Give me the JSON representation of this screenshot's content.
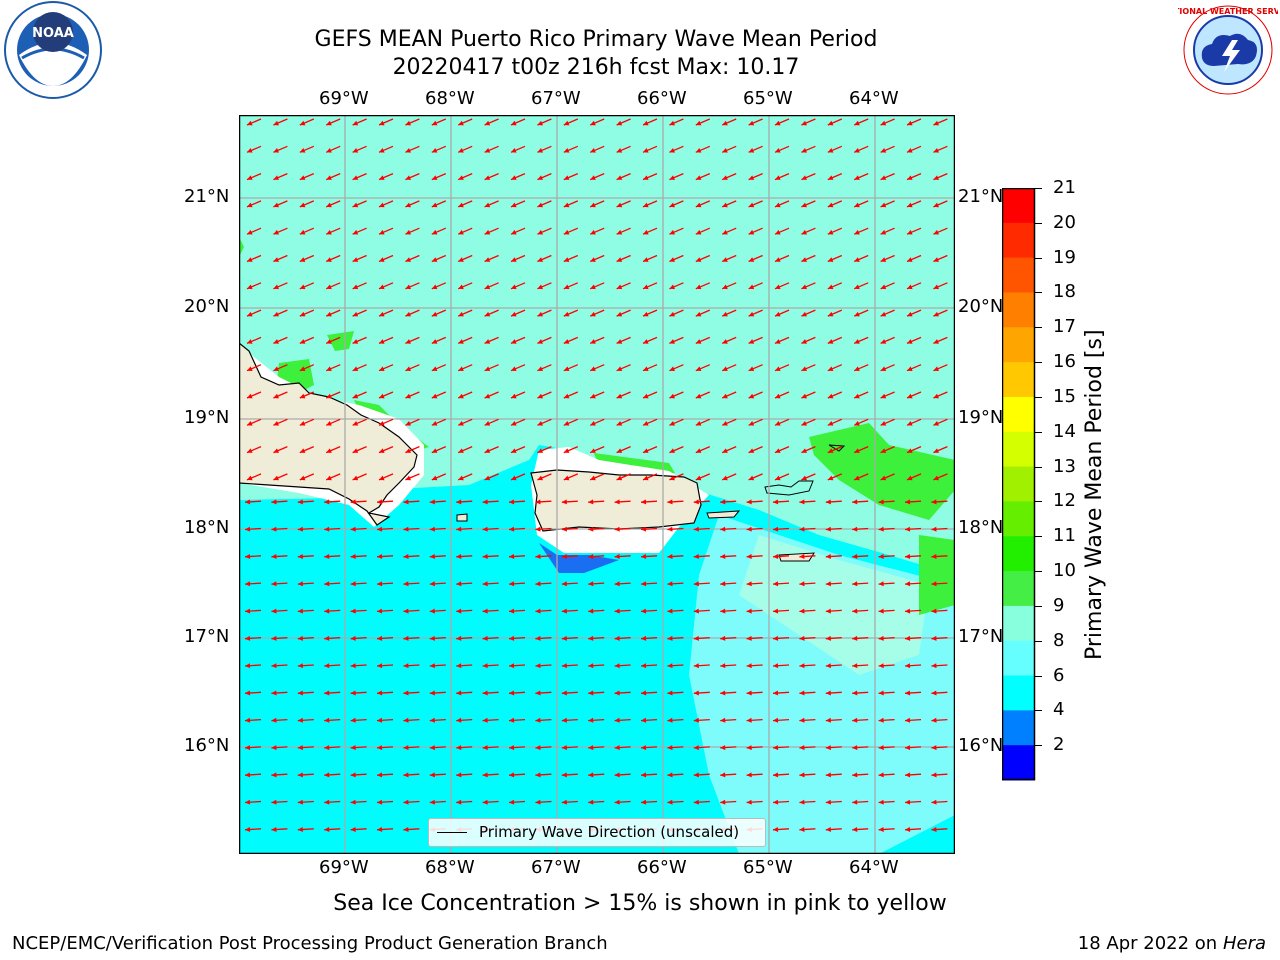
{
  "header": {
    "title_line1": "GEFS MEAN Puerto Rico Primary Wave Mean Period",
    "title_line2": "20220417 t00z 216h fcst   Max: 10.17"
  },
  "logos": {
    "left": "NOAA",
    "right": "NATIONAL WEATHER SERVICE"
  },
  "map": {
    "lon_ticks": [
      "69°W",
      "68°W",
      "67°W",
      "66°W",
      "65°W",
      "64°W"
    ],
    "lat_ticks": [
      "21°N",
      "20°N",
      "19°N",
      "18°N",
      "17°N",
      "16°N"
    ],
    "legend_label": "Primary Wave Direction (unscaled)",
    "vector_color": "#ff0000",
    "land_color": "#efedd8"
  },
  "colorbar": {
    "label": "Primary Wave Mean Period [s]",
    "ticks": [
      "21",
      "20",
      "19",
      "18",
      "17",
      "16",
      "15",
      "14",
      "13",
      "12",
      "11",
      "10",
      "9",
      "8",
      "6",
      "4",
      "2"
    ],
    "colors_top_to_bottom": [
      "#ff0000",
      "#ff2a00",
      "#ff5500",
      "#ff7f00",
      "#ffa500",
      "#ffc800",
      "#ffff00",
      "#d4ff00",
      "#a0f000",
      "#66ee00",
      "#22ee00",
      "#44ee44",
      "#88ffdd",
      "#66ffff",
      "#00ffff",
      "#0080ff",
      "#0000ff"
    ]
  },
  "note": "Sea Ice Concentration > 15% is shown in pink to yellow",
  "footer": {
    "left": "NCEP/EMC/Verification Post Processing Product Generation Branch",
    "right_date": "18 Apr 2022 on ",
    "right_host": "Hera"
  }
}
